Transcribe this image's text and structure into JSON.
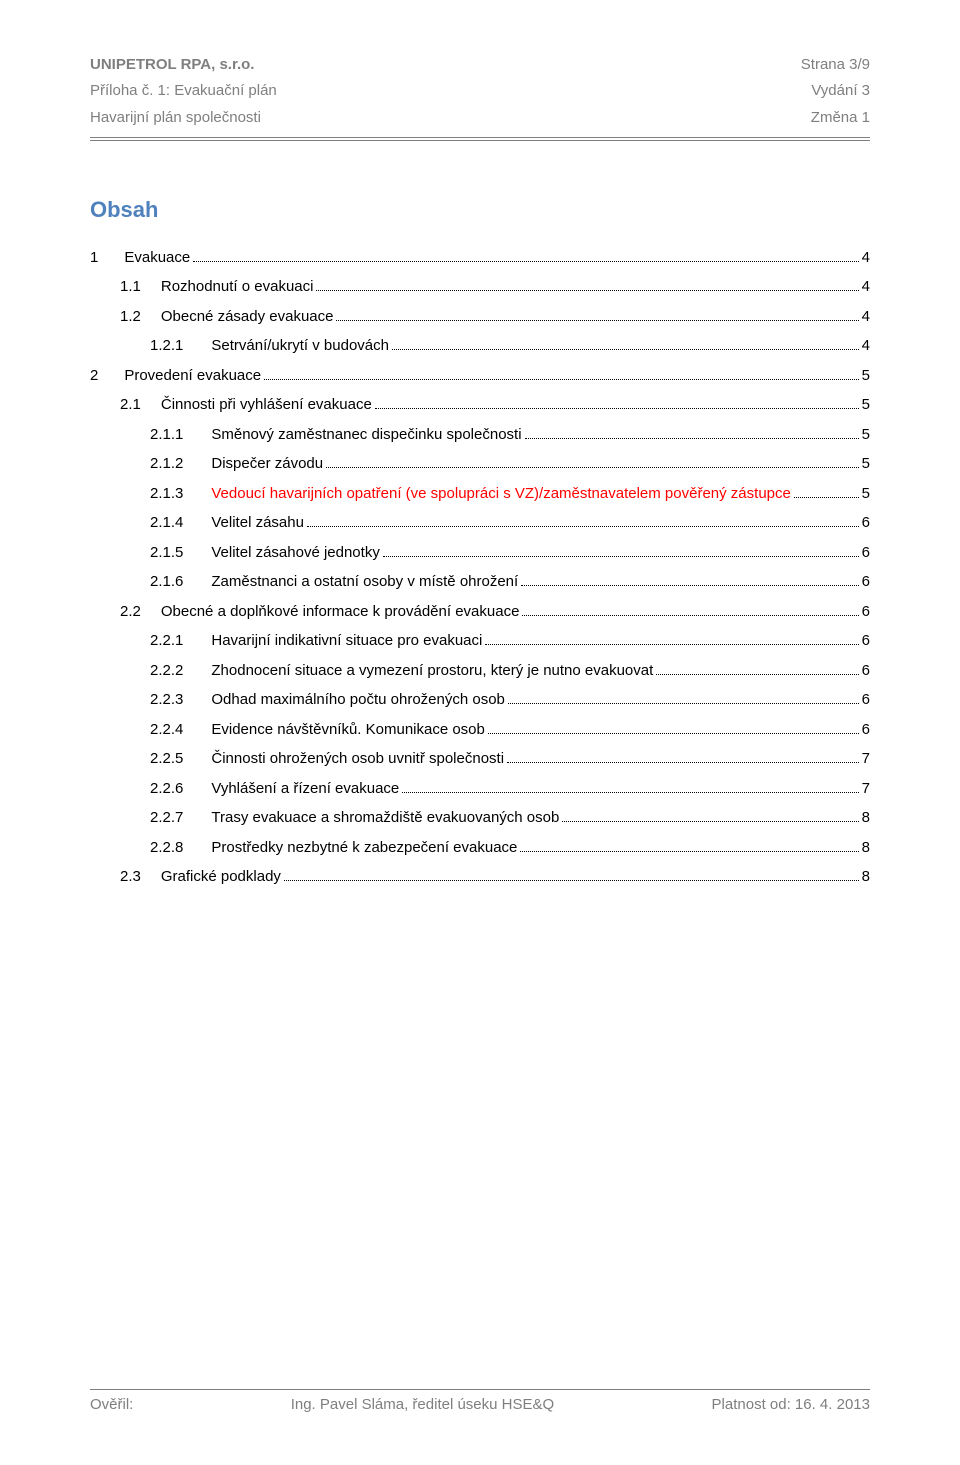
{
  "header": {
    "line1_left": "UNIPETROL RPA, s.r.o.",
    "line1_right": "Strana 3/9",
    "line2_left": "Příloha č. 1: Evakuační plán",
    "line2_right": "Vydání 3",
    "line3_left": "Havarijní plán společnosti",
    "line3_right": "Změna 1"
  },
  "obsah_title": "Obsah",
  "toc": [
    {
      "lvl": 1,
      "num": "1",
      "title": "Evakuace",
      "page": "4"
    },
    {
      "lvl": 2,
      "num": "1.1",
      "title": "Rozhodnutí o evakuaci",
      "page": "4"
    },
    {
      "lvl": 2,
      "num": "1.2",
      "title": "Obecné zásady evakuace",
      "page": "4"
    },
    {
      "lvl": 3,
      "num": "1.2.1",
      "title": "Setrvání/ukrytí v budovách",
      "page": "4"
    },
    {
      "lvl": 1,
      "num": "2",
      "title": "Provedení evakuace",
      "page": "5"
    },
    {
      "lvl": 2,
      "num": "2.1",
      "title": "Činnosti při vyhlášení evakuace",
      "page": "5"
    },
    {
      "lvl": 3,
      "num": "2.1.1",
      "title": "Směnový zaměstnanec dispečinku společnosti",
      "page": "5"
    },
    {
      "lvl": 3,
      "num": "2.1.2",
      "title": "Dispečer závodu",
      "page": "5"
    },
    {
      "lvl": 3,
      "num": "2.1.3",
      "title": "Vedoucí havarijních opatření (ve spolupráci s VZ)/zaměstnavatelem pověřený zástupce",
      "page": "5",
      "red": true
    },
    {
      "lvl": 3,
      "num": "2.1.4",
      "title": "Velitel zásahu",
      "page": "6"
    },
    {
      "lvl": 3,
      "num": "2.1.5",
      "title": "Velitel zásahové jednotky",
      "page": "6"
    },
    {
      "lvl": 3,
      "num": "2.1.6",
      "title": "Zaměstnanci a ostatní osoby v místě ohrožení",
      "page": "6"
    },
    {
      "lvl": 2,
      "num": "2.2",
      "title": "Obecné a doplňkové informace k provádění evakuace",
      "page": "6"
    },
    {
      "lvl": 3,
      "num": "2.2.1",
      "title": "Havarijní indikativní situace pro evakuaci",
      "page": "6"
    },
    {
      "lvl": 3,
      "num": "2.2.2",
      "title": "Zhodnocení situace a vymezení prostoru, který je nutno evakuovat",
      "page": "6"
    },
    {
      "lvl": 3,
      "num": "2.2.3",
      "title": "Odhad maximálního počtu ohrožených osob",
      "page": "6"
    },
    {
      "lvl": 3,
      "num": "2.2.4",
      "title": "Evidence návštěvníků. Komunikace osob",
      "page": "6"
    },
    {
      "lvl": 3,
      "num": "2.2.5",
      "title": "Činnosti ohrožených osob uvnitř společnosti",
      "page": "7"
    },
    {
      "lvl": 3,
      "num": "2.2.6",
      "title": "Vyhlášení a řízení evakuace",
      "page": "7"
    },
    {
      "lvl": 3,
      "num": "2.2.7",
      "title": "Trasy evakuace a shromaždiště evakuovaných osob",
      "page": "8"
    },
    {
      "lvl": 3,
      "num": "2.2.8",
      "title": "Prostředky nezbytné k zabezpečení evakuace",
      "page": "8"
    },
    {
      "lvl": 2,
      "num": "2.3",
      "title": "Grafické podklady",
      "page": "8"
    }
  ],
  "footer": {
    "left": "Ověřil:",
    "center": "Ing. Pavel Sláma, ředitel úseku HSE&Q",
    "right": "Platnost od: 16. 4. 2013"
  },
  "colors": {
    "heading": "#4f81bd",
    "muted": "#7f7f7f",
    "red": "#ff0000",
    "text": "#000000",
    "background": "#ffffff"
  }
}
